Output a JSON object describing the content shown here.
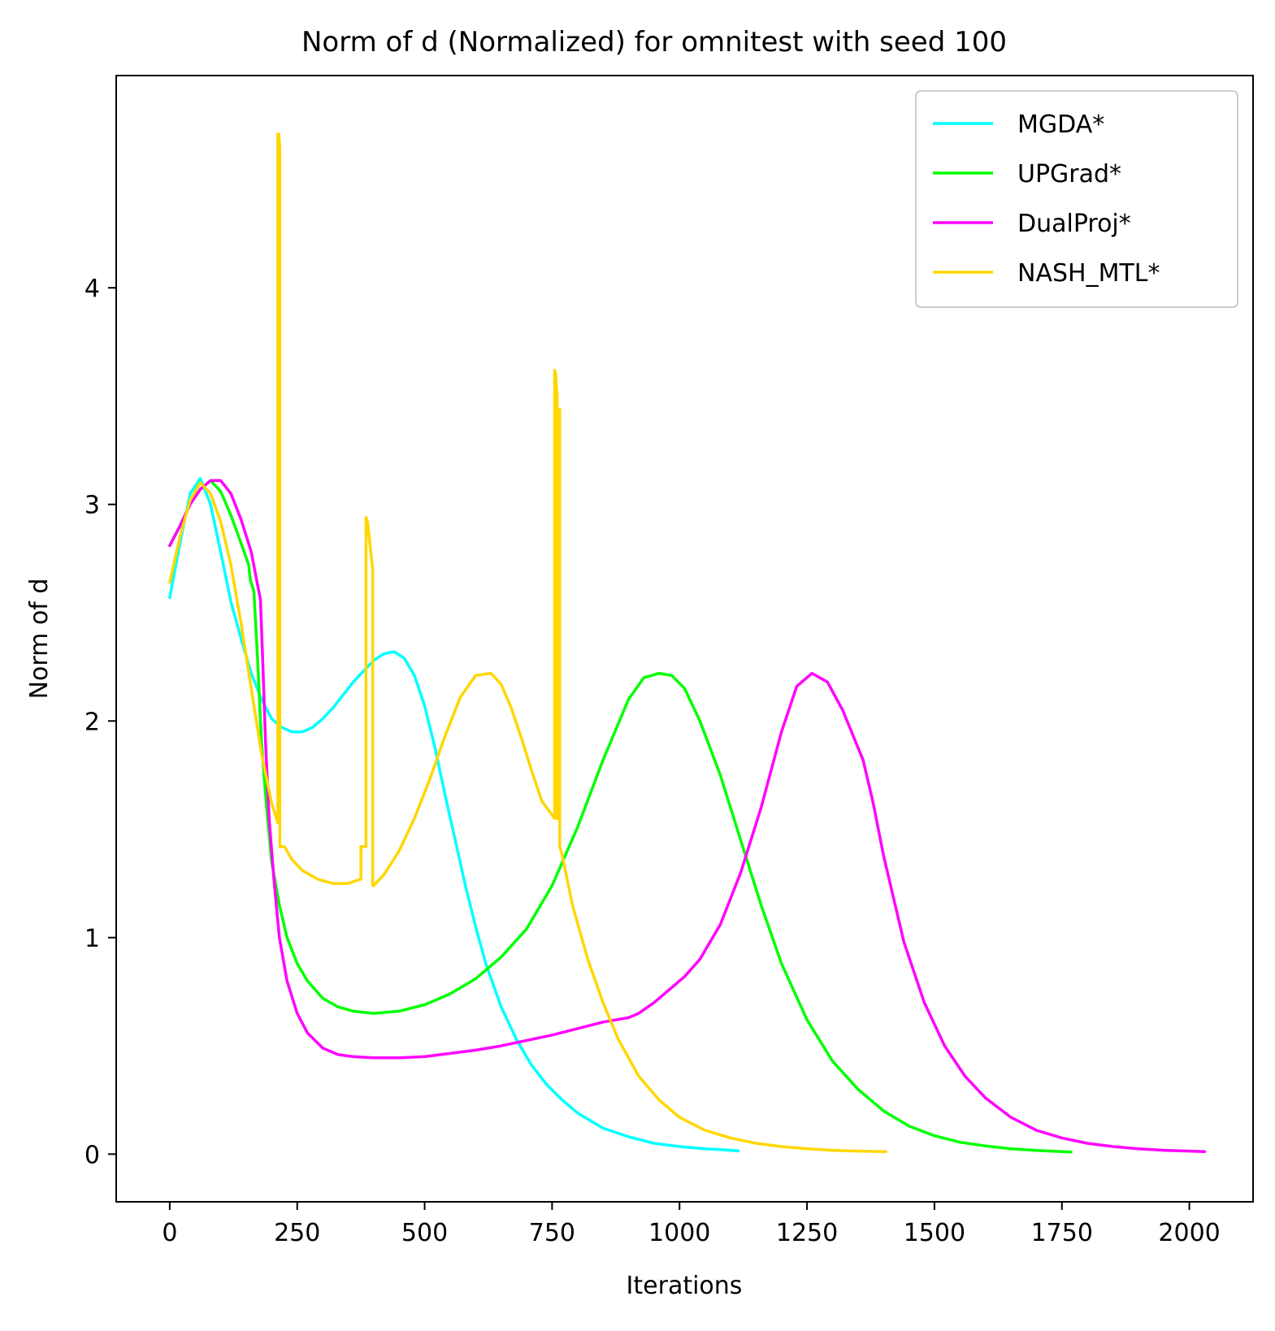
{
  "chart_data": {
    "type": "line",
    "title": "Norm of d (Normalized) for omnitest with seed 100",
    "xlabel": "Iterations",
    "ylabel": "Norm of d",
    "xlim": [
      -105,
      2125
    ],
    "ylim": [
      -0.22,
      4.98
    ],
    "xticks": [
      0,
      250,
      500,
      750,
      1000,
      1250,
      1500,
      1750,
      2000
    ],
    "yticks": [
      0,
      1,
      2,
      3,
      4
    ],
    "grid": false,
    "legend_position": "top-right",
    "series": [
      {
        "name": "MGDA*",
        "color": "#00ffff",
        "x": [
          0,
          20,
          40,
          60,
          80,
          100,
          120,
          140,
          160,
          180,
          200,
          220,
          240,
          260,
          280,
          300,
          320,
          340,
          360,
          380,
          400,
          420,
          440,
          460,
          480,
          500,
          520,
          540,
          560,
          580,
          600,
          620,
          650,
          680,
          710,
          740,
          770,
          800,
          850,
          900,
          950,
          1000,
          1050,
          1100,
          1115
        ],
        "y": [
          2.57,
          2.82,
          3.05,
          3.12,
          3.0,
          2.78,
          2.55,
          2.38,
          2.22,
          2.1,
          2.01,
          1.97,
          1.95,
          1.95,
          1.97,
          2.01,
          2.06,
          2.12,
          2.18,
          2.23,
          2.28,
          2.31,
          2.32,
          2.29,
          2.21,
          2.07,
          1.88,
          1.66,
          1.45,
          1.24,
          1.05,
          0.88,
          0.68,
          0.53,
          0.41,
          0.32,
          0.25,
          0.19,
          0.12,
          0.08,
          0.05,
          0.035,
          0.025,
          0.018,
          0.015
        ]
      },
      {
        "name": "UPGrad*",
        "color": "#00ff00",
        "x": [
          0,
          20,
          40,
          60,
          80,
          100,
          120,
          140,
          155,
          158,
          165,
          172,
          180,
          190,
          200,
          215,
          230,
          250,
          270,
          300,
          330,
          360,
          400,
          450,
          500,
          550,
          600,
          650,
          700,
          750,
          800,
          850,
          900,
          930,
          960,
          985,
          1010,
          1040,
          1080,
          1120,
          1160,
          1200,
          1250,
          1300,
          1350,
          1400,
          1450,
          1500,
          1550,
          1600,
          1650,
          1700,
          1768
        ],
        "y": [
          2.81,
          2.9,
          3.0,
          3.07,
          3.11,
          3.06,
          2.95,
          2.82,
          2.72,
          2.65,
          2.6,
          2.3,
          1.9,
          1.6,
          1.35,
          1.15,
          1.0,
          0.88,
          0.8,
          0.72,
          0.68,
          0.66,
          0.65,
          0.66,
          0.69,
          0.74,
          0.81,
          0.91,
          1.04,
          1.24,
          1.51,
          1.82,
          2.1,
          2.2,
          2.22,
          2.21,
          2.15,
          2.0,
          1.75,
          1.45,
          1.15,
          0.88,
          0.62,
          0.43,
          0.3,
          0.2,
          0.13,
          0.085,
          0.055,
          0.038,
          0.025,
          0.017,
          0.01
        ]
      },
      {
        "name": "DualProj*",
        "color": "#ff00ff",
        "x": [
          0,
          20,
          40,
          60,
          80,
          100,
          120,
          140,
          160,
          178,
          182,
          188,
          195,
          205,
          215,
          230,
          250,
          270,
          300,
          330,
          360,
          400,
          450,
          500,
          550,
          600,
          650,
          700,
          750,
          800,
          850,
          900,
          920,
          950,
          980,
          1010,
          1040,
          1080,
          1120,
          1160,
          1200,
          1230,
          1260,
          1290,
          1320,
          1360,
          1380,
          1400,
          1440,
          1480,
          1520,
          1560,
          1600,
          1650,
          1700,
          1750,
          1800,
          1850,
          1900,
          1950,
          2000,
          2030
        ],
        "y": [
          2.81,
          2.9,
          3.0,
          3.07,
          3.11,
          3.11,
          3.05,
          2.93,
          2.78,
          2.56,
          2.3,
          1.9,
          1.55,
          1.25,
          1.0,
          0.8,
          0.65,
          0.56,
          0.49,
          0.46,
          0.45,
          0.445,
          0.445,
          0.45,
          0.465,
          0.48,
          0.5,
          0.525,
          0.55,
          0.58,
          0.61,
          0.63,
          0.65,
          0.7,
          0.76,
          0.82,
          0.9,
          1.06,
          1.3,
          1.6,
          1.95,
          2.16,
          2.22,
          2.18,
          2.05,
          1.82,
          1.62,
          1.38,
          0.98,
          0.7,
          0.5,
          0.36,
          0.26,
          0.17,
          0.11,
          0.075,
          0.05,
          0.035,
          0.025,
          0.018,
          0.014,
          0.012
        ]
      },
      {
        "name": "NASH_MTL*",
        "color": "#ffd700",
        "x": [
          0,
          20,
          40,
          60,
          80,
          100,
          120,
          140,
          160,
          180,
          200,
          212,
          212,
          214,
          216,
          216,
          218,
          218,
          225,
          240,
          260,
          290,
          320,
          350,
          375,
          375,
          380,
          385,
          385,
          388,
          398,
          398,
          400,
          420,
          450,
          480,
          510,
          540,
          570,
          600,
          630,
          650,
          670,
          690,
          710,
          730,
          755,
          755,
          757,
          760,
          760,
          763,
          763,
          765,
          765,
          770,
          790,
          820,
          850,
          880,
          920,
          960,
          1000,
          1050,
          1100,
          1150,
          1200,
          1250,
          1300,
          1350,
          1405
        ],
        "y": [
          2.64,
          2.85,
          3.02,
          3.1,
          3.05,
          2.92,
          2.72,
          2.45,
          2.15,
          1.85,
          1.62,
          1.53,
          4.71,
          4.71,
          4.65,
          1.42,
          1.42,
          1.42,
          1.42,
          1.36,
          1.31,
          1.27,
          1.25,
          1.25,
          1.27,
          1.42,
          1.42,
          1.42,
          2.94,
          2.92,
          2.7,
          1.24,
          1.24,
          1.29,
          1.4,
          1.55,
          1.73,
          1.93,
          2.11,
          2.21,
          2.22,
          2.17,
          2.06,
          1.92,
          1.77,
          1.63,
          1.55,
          3.62,
          3.6,
          3.5,
          1.55,
          1.55,
          3.44,
          3.44,
          1.42,
          1.38,
          1.15,
          0.9,
          0.7,
          0.53,
          0.36,
          0.25,
          0.17,
          0.11,
          0.075,
          0.05,
          0.035,
          0.025,
          0.018,
          0.014,
          0.012
        ]
      }
    ]
  }
}
